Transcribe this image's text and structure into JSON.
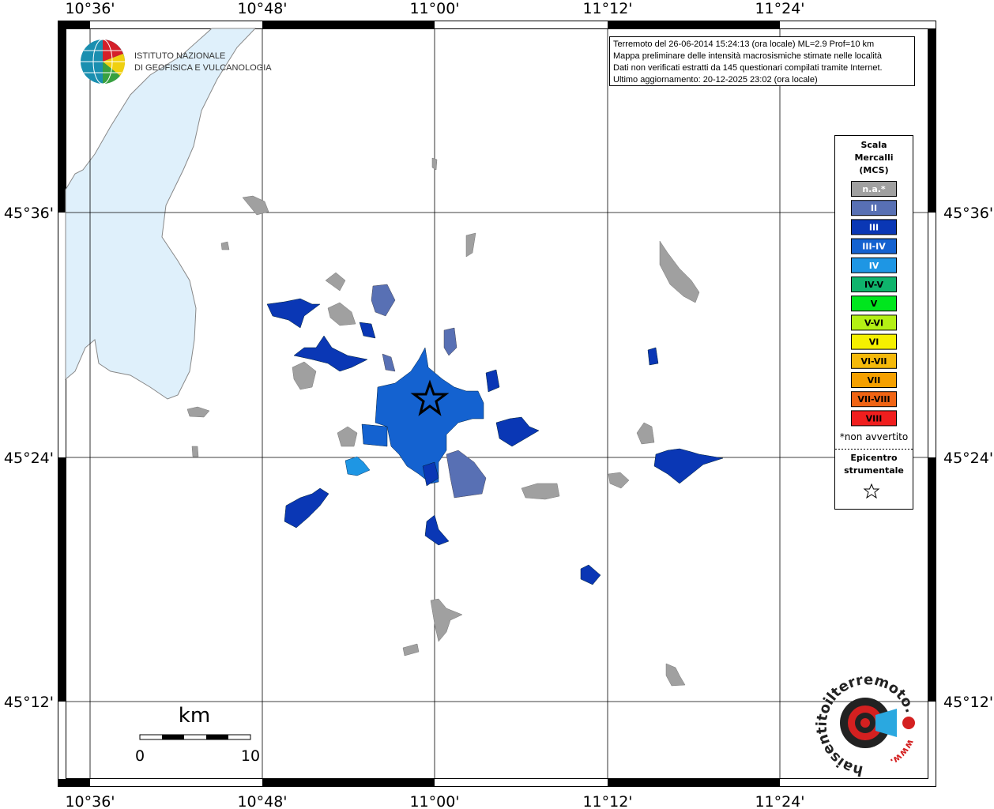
{
  "logo": {
    "line1": "ISTITUTO NAZIONALE",
    "line2": "DI GEOFISICA E VULCANOLOGIA"
  },
  "info": [
    "Terremoto del 26-06-2014 15:24:13 (ora locale) ML=2.9 Prof=10 km",
    "Mappa preliminare delle intensità macrosismiche stimate nelle località",
    "Dati non verificati estratti da 145 questionari compilati tramite Internet.",
    "Ultimo aggiornamento: 20-12-2025 23:02 (ora locale)"
  ],
  "longitude_labels": [
    "10°36'",
    "10°48'",
    "11°00'",
    "11°12'",
    "11°24'"
  ],
  "latitude_labels": [
    "45°36'",
    "45°24'",
    "45°12'"
  ],
  "legend": {
    "title": [
      "Scala",
      "Mercalli",
      "(MCS)"
    ],
    "items": [
      {
        "label": "n.a.*",
        "color": "#a0a0a0"
      },
      {
        "label": "II",
        "color": "#5870b4"
      },
      {
        "label": "III",
        "color": "#0a37b5"
      },
      {
        "label": "III-IV",
        "color": "#1462d0"
      },
      {
        "label": "IV",
        "color": "#1e96e4"
      },
      {
        "label": "IV-V",
        "color": "#0fb46c"
      },
      {
        "label": "V",
        "color": "#00e61e"
      },
      {
        "label": "V-VI",
        "color": "#b4f014"
      },
      {
        "label": "VI",
        "color": "#f5f000"
      },
      {
        "label": "VI-VII",
        "color": "#f5b90a"
      },
      {
        "label": "VII",
        "color": "#f5a000"
      },
      {
        "label": "VII-VIII",
        "color": "#f06414"
      },
      {
        "label": "VIII",
        "color": "#f01e1e"
      }
    ],
    "note": "*non avvertito",
    "epicenter": [
      "Epicentro",
      "strumentale"
    ]
  },
  "scale_bar": {
    "unit": "km",
    "start": "0",
    "end": "10"
  },
  "badge": {
    "ring_text": "haisentitoilterremoto.it",
    "www": "www."
  }
}
